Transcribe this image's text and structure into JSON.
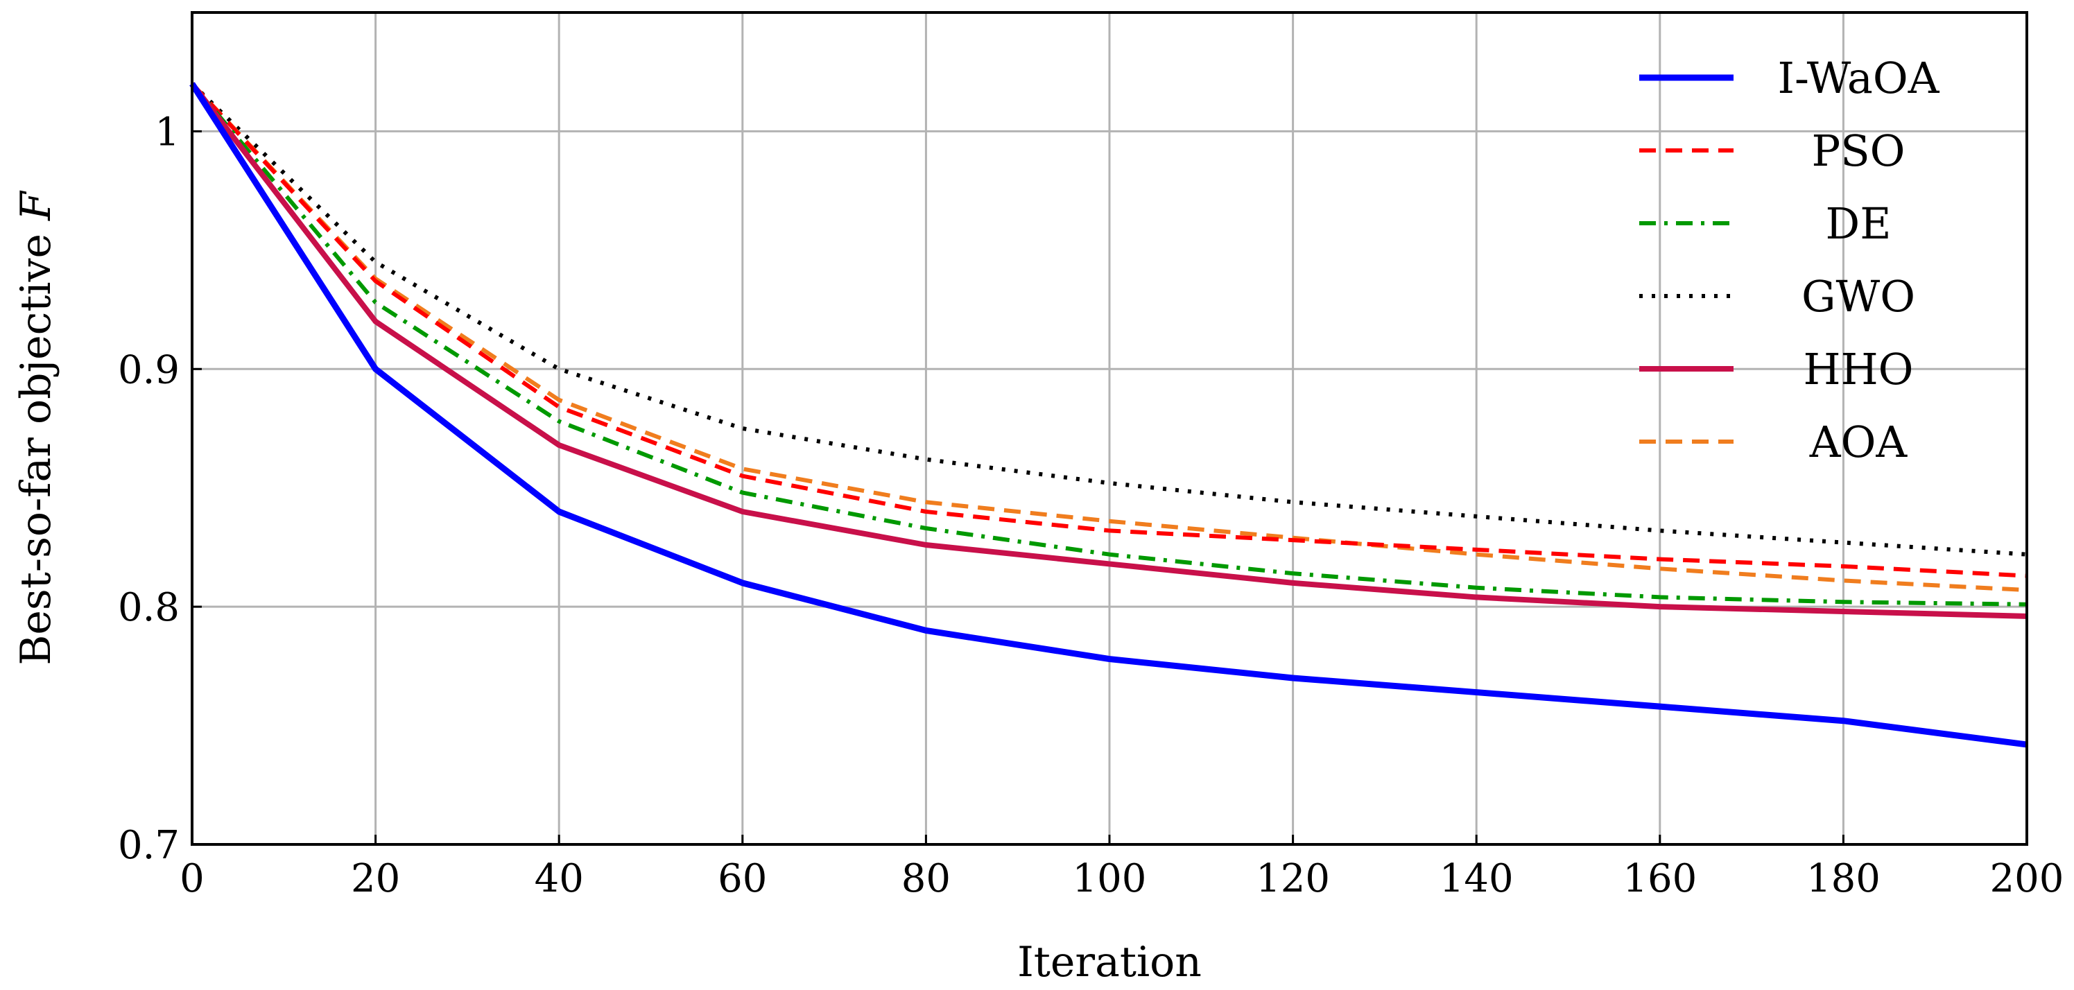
{
  "chart_data": {
    "type": "line",
    "title": "",
    "xlabel": "Iteration",
    "ylabel": "Best-so-far objective F",
    "ylabel_prefix": "Best-so-far objective ",
    "ylabel_var": "F",
    "xlim": [
      0,
      200
    ],
    "ylim": [
      0.7,
      1.05
    ],
    "xticks": [
      0,
      20,
      40,
      60,
      80,
      100,
      120,
      140,
      160,
      180,
      200
    ],
    "yticks": [
      0.7,
      0.8,
      0.9,
      1.0
    ],
    "ytick_labels": [
      "0.7",
      "0.8",
      "0.9",
      "1"
    ],
    "grid": true,
    "legend_position": "top-right",
    "x": [
      0,
      20,
      40,
      60,
      80,
      100,
      120,
      140,
      160,
      180,
      200
    ],
    "series": [
      {
        "name": "I-WaOA",
        "color": "#0000ff",
        "style": "solid",
        "values": [
          1.02,
          0.9,
          0.84,
          0.81,
          0.79,
          0.778,
          0.77,
          0.764,
          0.758,
          0.752,
          0.742
        ]
      },
      {
        "name": "PSO",
        "color": "#ff0000",
        "style": "dashed",
        "values": [
          1.02,
          0.937,
          0.884,
          0.855,
          0.84,
          0.832,
          0.828,
          0.824,
          0.82,
          0.817,
          0.813
        ]
      },
      {
        "name": "DE",
        "color": "#009900",
        "style": "dashdot",
        "values": [
          1.02,
          0.928,
          0.878,
          0.848,
          0.833,
          0.822,
          0.814,
          0.808,
          0.804,
          0.802,
          0.801
        ]
      },
      {
        "name": "GWO",
        "color": "#000000",
        "style": "dotted",
        "values": [
          1.02,
          0.945,
          0.9,
          0.875,
          0.862,
          0.852,
          0.844,
          0.838,
          0.832,
          0.827,
          0.822
        ]
      },
      {
        "name": "HHO",
        "color": "#c8104a",
        "style": "solid",
        "values": [
          1.02,
          0.92,
          0.868,
          0.84,
          0.826,
          0.818,
          0.81,
          0.804,
          0.8,
          0.798,
          0.796
        ]
      },
      {
        "name": "AOA",
        "color": "#f07d1e",
        "style": "dashed",
        "values": [
          1.02,
          0.938,
          0.887,
          0.858,
          0.844,
          0.836,
          0.829,
          0.822,
          0.816,
          0.811,
          0.807
        ]
      }
    ]
  }
}
